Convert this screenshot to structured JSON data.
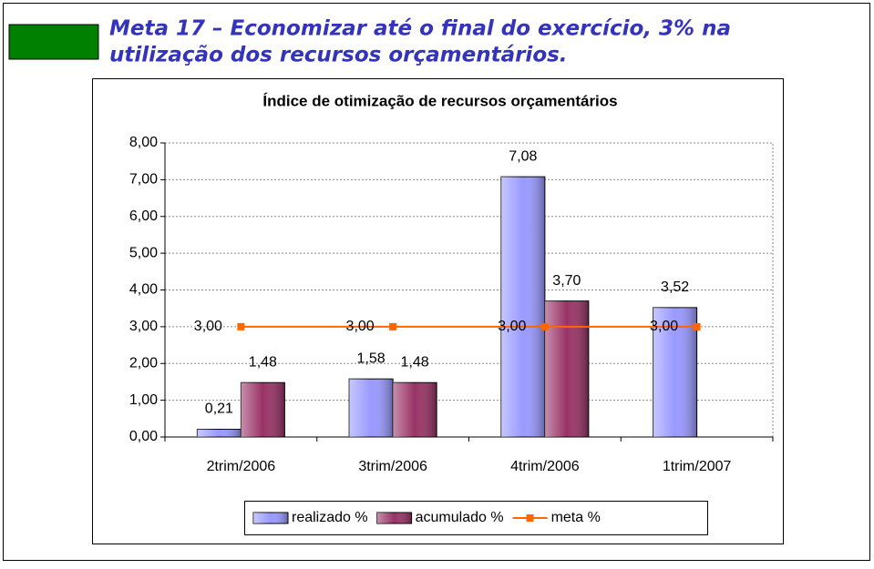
{
  "header": {
    "title_lines": [
      "Meta 17 – Economizar até o final do exercício, 3% na",
      "utilização dos recursos orçamentários."
    ]
  },
  "chart_data": {
    "type": "bar",
    "title": "Índice de otimização de recursos orçamentários",
    "categories": [
      "2trim/2006",
      "3trim/2006",
      "4trim/2006",
      "1trim/2007"
    ],
    "series": [
      {
        "name": "realizado %",
        "type": "bar",
        "color": "#9999ff",
        "values": [
          0.21,
          1.58,
          7.08,
          3.52
        ],
        "value_labels": [
          "0,21",
          "1,58",
          "7,08",
          "3,52"
        ]
      },
      {
        "name": "acumulado %",
        "type": "bar",
        "color": "#993366",
        "values": [
          1.48,
          1.48,
          3.7,
          null
        ],
        "value_labels": [
          "1,48",
          "1,48",
          "3,70",
          null
        ]
      },
      {
        "name": "meta %",
        "type": "line",
        "color": "#ff6600",
        "values": [
          3,
          3,
          3,
          3
        ],
        "value_labels": [
          "3,00",
          "3,00",
          "3,00",
          "3,00"
        ]
      }
    ],
    "ylim": [
      0,
      8
    ],
    "yticks": [
      {
        "value": 0,
        "label": "0,00"
      },
      {
        "value": 1,
        "label": "1,00"
      },
      {
        "value": 2,
        "label": "2,00"
      },
      {
        "value": 3,
        "label": "3,00"
      },
      {
        "value": 4,
        "label": "4,00"
      },
      {
        "value": 5,
        "label": "5,00"
      },
      {
        "value": 6,
        "label": "6,00"
      },
      {
        "value": 7,
        "label": "7,00"
      },
      {
        "value": 8,
        "label": "8,00"
      }
    ],
    "grid": true,
    "legend": "bottom"
  }
}
